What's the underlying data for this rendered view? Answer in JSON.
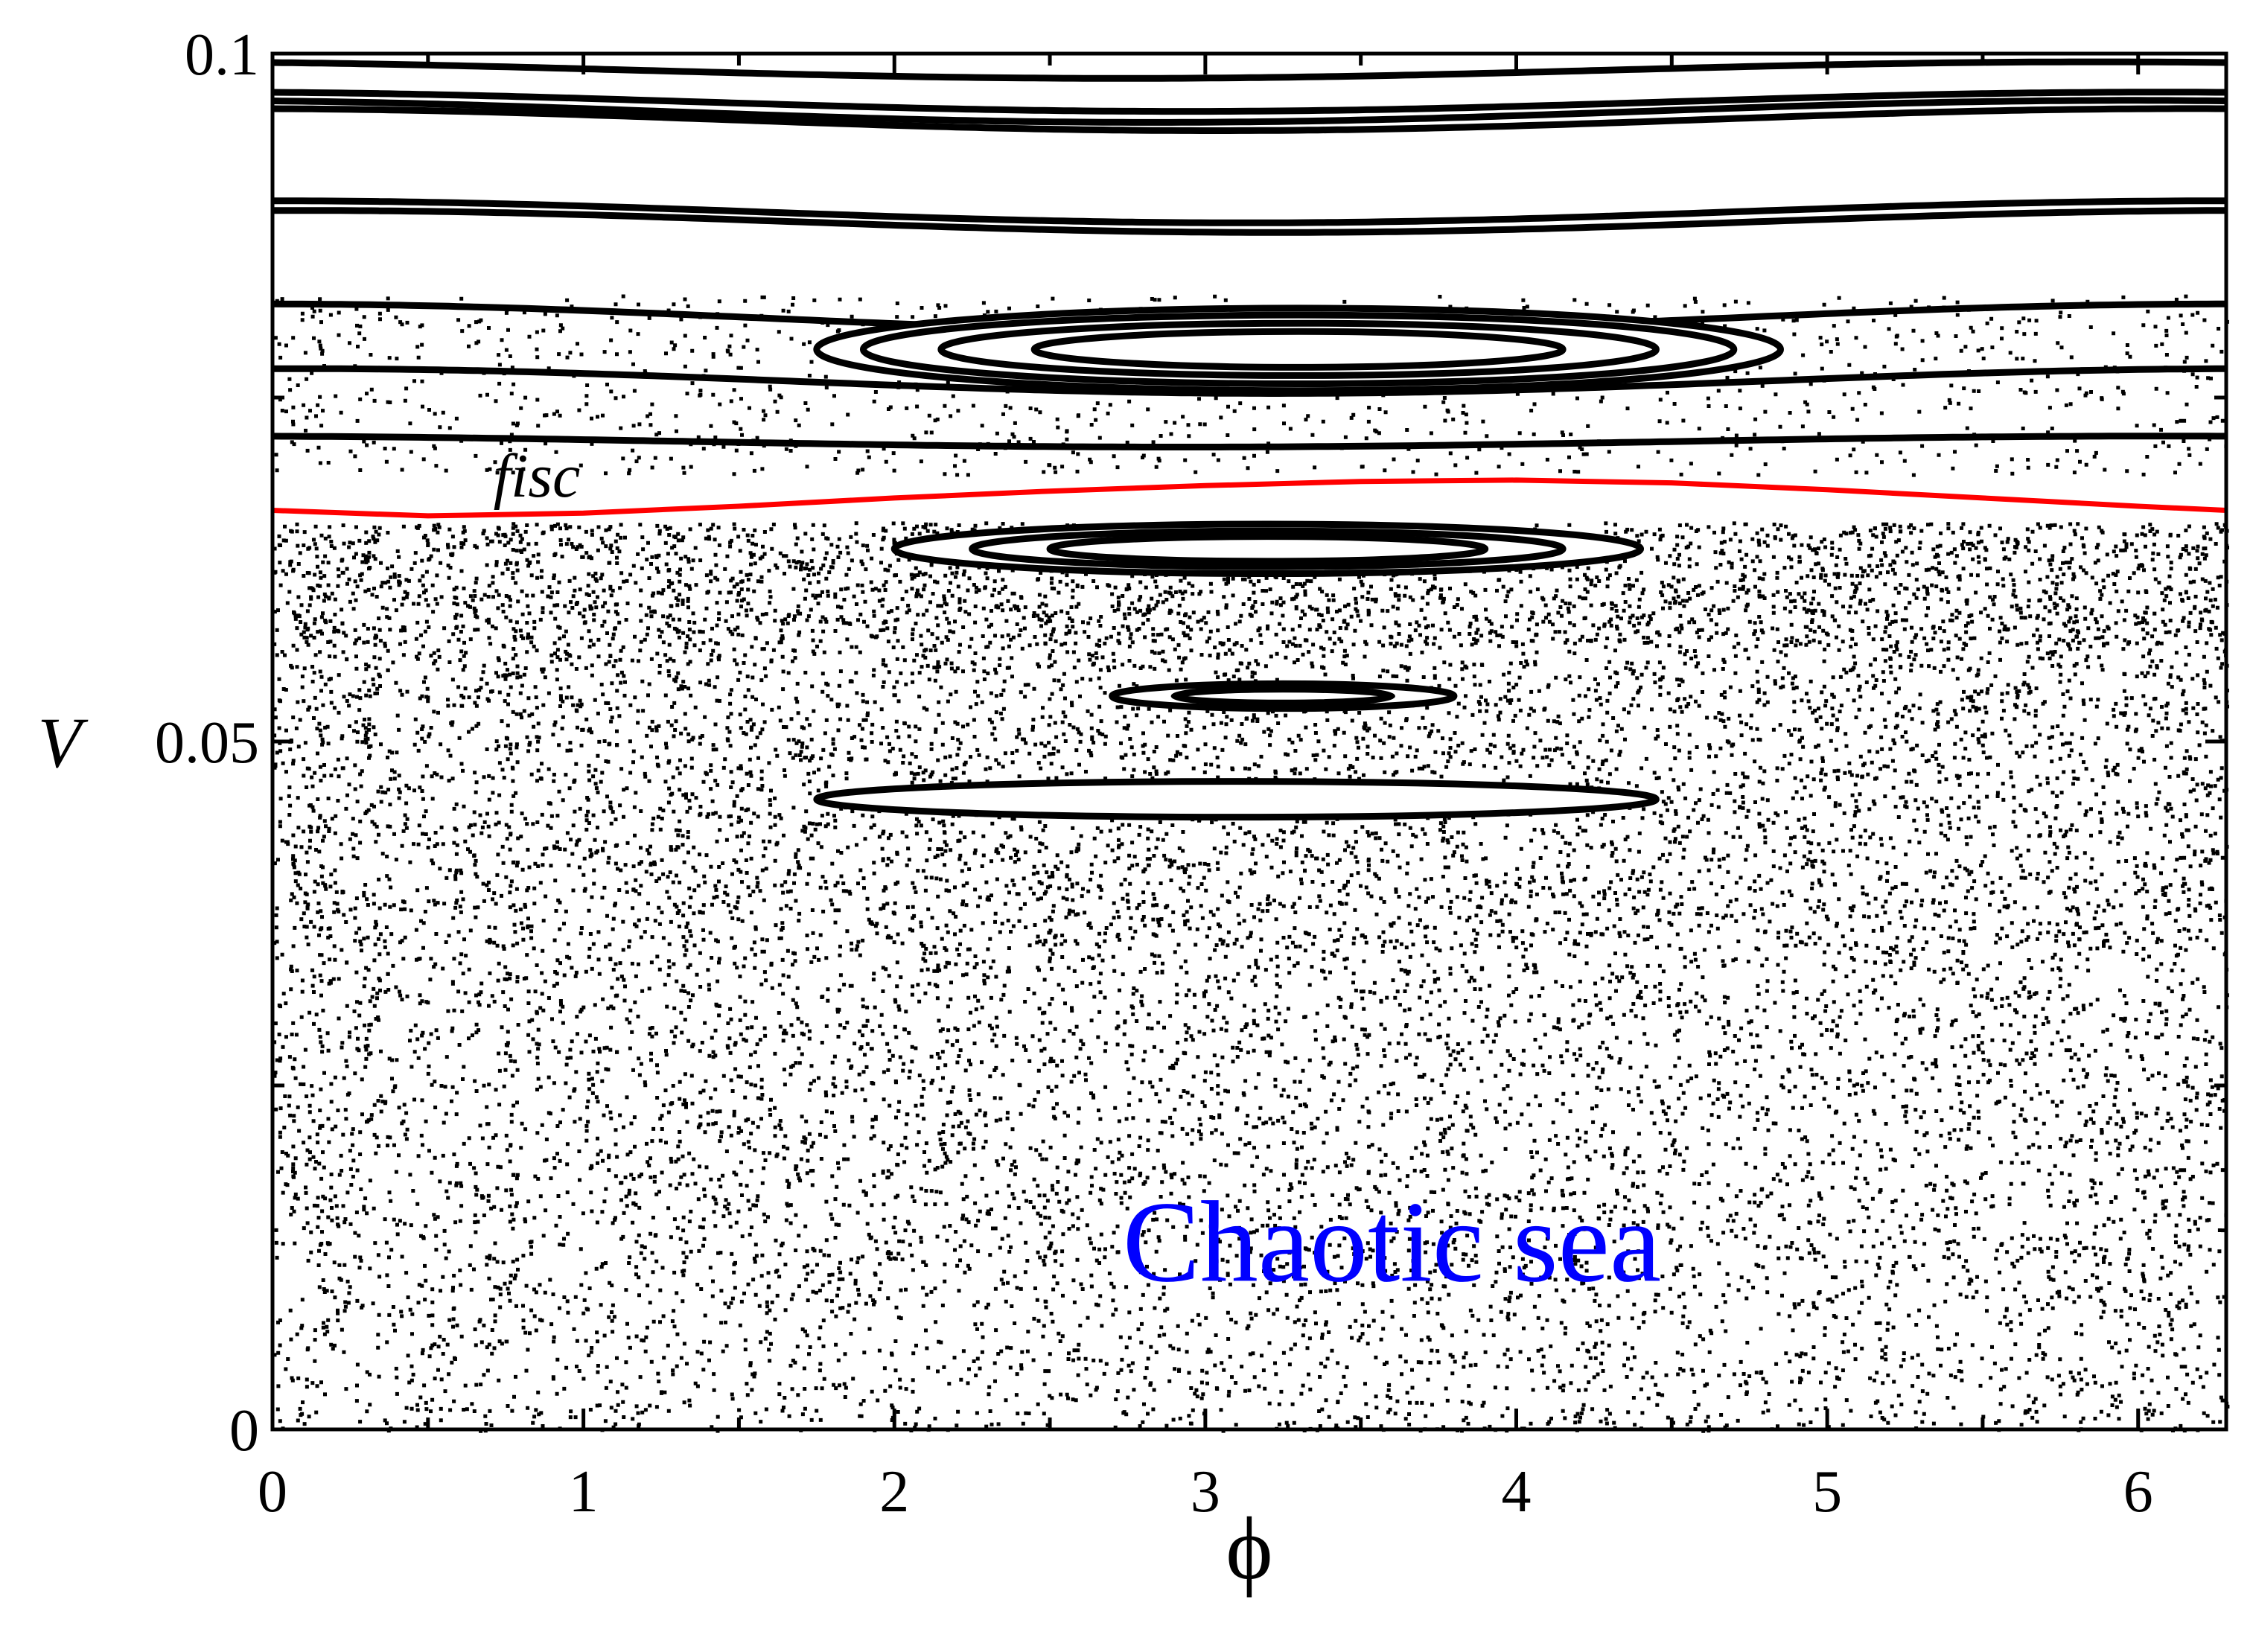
{
  "chart_data": {
    "type": "scatter",
    "title": "",
    "xlabel": "ϕ",
    "ylabel": "V",
    "xlim": [
      0,
      6.2832
    ],
    "ylim": [
      0,
      0.1
    ],
    "x_ticks": [
      0,
      1,
      2,
      3,
      4,
      5,
      6
    ],
    "x_tick_labels": [
      "0",
      "1",
      "2",
      "3",
      "4",
      "5",
      "6"
    ],
    "y_ticks": [
      0,
      0.05,
      0.1
    ],
    "y_tick_labels": [
      "0",
      "0.05",
      "0.1"
    ],
    "grid": false,
    "legend": "none",
    "colors": {
      "points": "#000000",
      "fisc_curve": "#ff0000",
      "annotation": "#0000ff"
    },
    "annotations": [
      {
        "text": "fisc",
        "x": 0.85,
        "y": 0.0678,
        "color": "#000000"
      },
      {
        "text": "Chaotic sea",
        "x": 3.6,
        "y": 0.0108,
        "color": "#0000ff"
      }
    ],
    "fisc_curve": {
      "name": "fisc",
      "x": [
        0,
        0.5,
        1,
        1.5,
        2,
        2.5,
        3,
        3.5,
        4,
        4.5,
        5,
        5.5,
        6,
        6.2832
      ],
      "y": [
        0.0668,
        0.0664,
        0.0666,
        0.0671,
        0.0677,
        0.0682,
        0.0686,
        0.0689,
        0.069,
        0.0688,
        0.0683,
        0.0677,
        0.0671,
        0.0668
      ]
    },
    "invariant_curves": [
      {
        "v0": 0.0988,
        "amp": 0.0006,
        "phase": 4.3
      },
      {
        "v0": 0.0965,
        "amp": 0.0007,
        "phase": 4.5
      },
      {
        "v0": 0.0958,
        "amp": 0.0008,
        "phase": 4.4
      },
      {
        "v0": 0.0952,
        "amp": 0.0008,
        "phase": 4.6
      },
      {
        "v0": 0.0885,
        "amp": 0.0008,
        "phase": 4.7
      },
      {
        "v0": 0.0878,
        "amp": 0.0008,
        "phase": 4.8
      },
      {
        "v0": 0.0808,
        "amp": 0.001,
        "phase": 4.7
      },
      {
        "v0": 0.0762,
        "amp": 0.0009,
        "phase": 4.8
      },
      {
        "v0": 0.0718,
        "amp": 0.0004,
        "phase": 4.5
      }
    ],
    "islands": [
      {
        "cx": 3.3,
        "cy": 0.0785,
        "rx": 1.55,
        "ry": 0.003
      },
      {
        "cx": 3.3,
        "cy": 0.0785,
        "rx": 1.4,
        "ry": 0.0025
      },
      {
        "cx": 3.3,
        "cy": 0.0785,
        "rx": 1.15,
        "ry": 0.0019
      },
      {
        "cx": 3.3,
        "cy": 0.0785,
        "rx": 0.85,
        "ry": 0.0013
      },
      {
        "cx": 3.2,
        "cy": 0.064,
        "rx": 1.2,
        "ry": 0.0018
      },
      {
        "cx": 3.2,
        "cy": 0.064,
        "rx": 0.95,
        "ry": 0.0013
      },
      {
        "cx": 3.2,
        "cy": 0.064,
        "rx": 0.7,
        "ry": 0.0009
      },
      {
        "cx": 3.25,
        "cy": 0.0533,
        "rx": 0.55,
        "ry": 0.0009
      },
      {
        "cx": 3.25,
        "cy": 0.0533,
        "rx": 0.35,
        "ry": 0.0005
      },
      {
        "cx": 3.1,
        "cy": 0.0458,
        "rx": 1.35,
        "ry": 0.0013
      }
    ],
    "chaotic_regions": [
      {
        "y_min": 0.0,
        "y_max": 0.012,
        "points": 1800
      },
      {
        "y_min": 0.012,
        "y_max": 0.035,
        "points": 4200
      },
      {
        "y_min": 0.035,
        "y_max": 0.057,
        "points": 5200
      },
      {
        "y_min": 0.057,
        "y_max": 0.066,
        "points": 3200
      },
      {
        "y_min": 0.0695,
        "y_max": 0.0825,
        "points": 1200
      }
    ]
  }
}
